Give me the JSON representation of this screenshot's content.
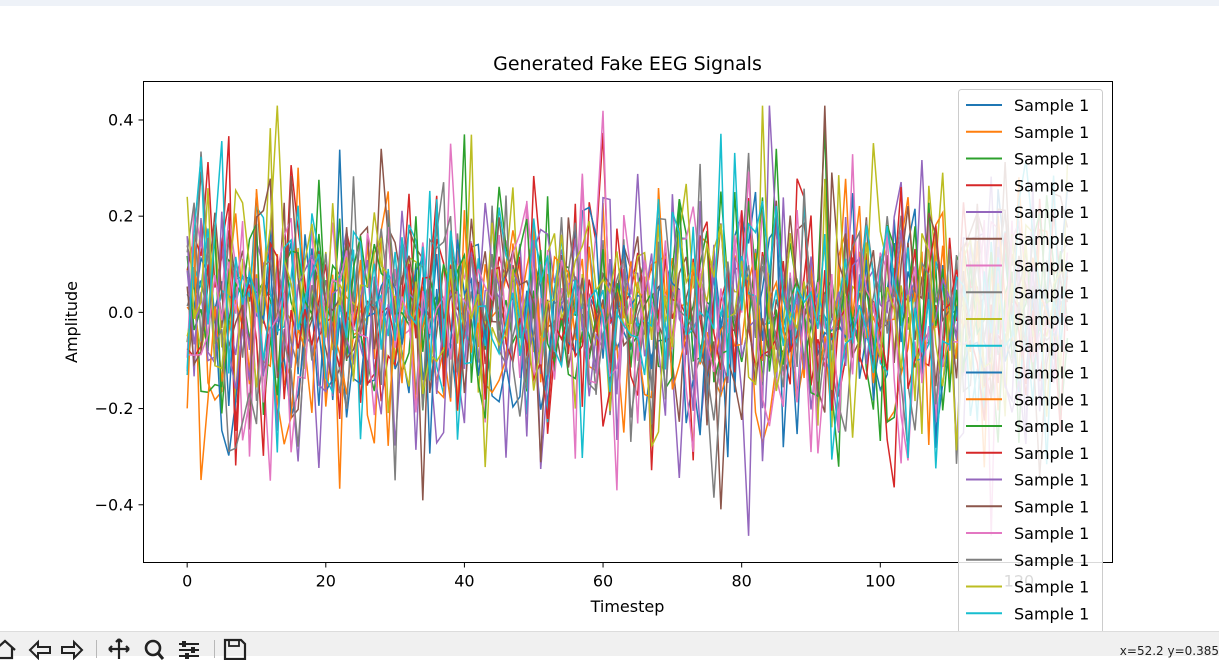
{
  "chart_data": {
    "type": "line",
    "title": "Generated Fake EEG Signals",
    "xlabel": "Timestep",
    "ylabel": "Amplitude",
    "xlim": [
      -6.3,
      133.5
    ],
    "ylim": [
      -0.52,
      0.48
    ],
    "xticks": [
      0,
      20,
      40,
      60,
      80,
      100,
      120
    ],
    "xtick_labels": [
      "0",
      "20",
      "40",
      "60",
      "80",
      "100",
      "120"
    ],
    "yticks": [
      0.4,
      0.2,
      0.0,
      -0.2,
      -0.4
    ],
    "ytick_labels": [
      "0.4",
      "0.2",
      "0.0",
      "−0.2",
      "−0.4"
    ],
    "grid": false,
    "legend_position": "upper right",
    "series_count": 20,
    "timesteps": 128,
    "series_names": [
      "Sample 1",
      "Sample 1",
      "Sample 1",
      "Sample 1",
      "Sample 1",
      "Sample 1",
      "Sample 1",
      "Sample 1",
      "Sample 1",
      "Sample 1",
      "Sample 1",
      "Sample 1",
      "Sample 1",
      "Sample 1",
      "Sample 1",
      "Sample 1",
      "Sample 1",
      "Sample 1",
      "Sample 1",
      "Sample 1"
    ],
    "series_colors": [
      "#1f77b4",
      "#ff7f0e",
      "#2ca02c",
      "#d62728",
      "#9467bd",
      "#8c564b",
      "#e377c2",
      "#7f7f7f",
      "#bcbd22",
      "#17becf",
      "#1f77b4",
      "#ff7f0e",
      "#2ca02c",
      "#d62728",
      "#9467bd",
      "#8c564b",
      "#e377c2",
      "#7f7f7f",
      "#bcbd22",
      "#17becf"
    ],
    "signal_mean": 0.0,
    "signal_std": 0.13,
    "signal_range": [
      -0.47,
      0.43
    ]
  },
  "toolbar": {
    "icons": [
      "home-icon",
      "back-icon",
      "forward-icon",
      "pan-icon",
      "zoom-icon",
      "configure-icon",
      "save-icon"
    ],
    "coords": "x=52.2 y=0.385"
  }
}
